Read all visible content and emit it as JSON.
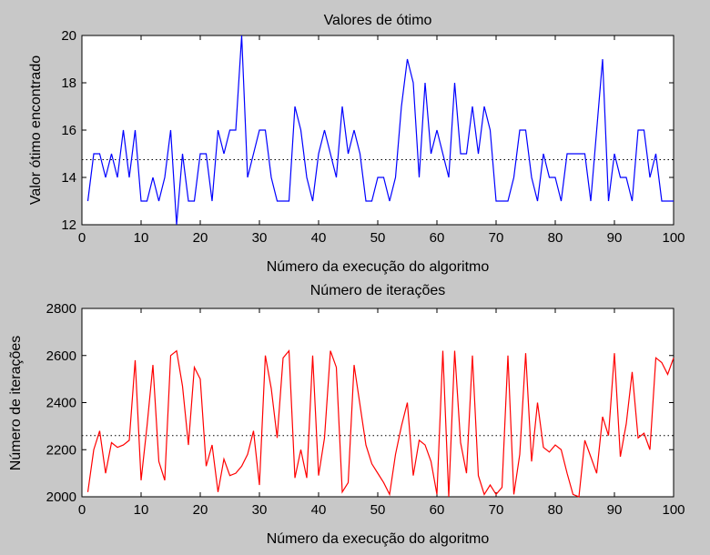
{
  "chart_data": [
    {
      "type": "line",
      "title": "Valores de ótimo",
      "xlabel": "Número da execução do algoritmo",
      "ylabel": "Valor ótimo encontrado",
      "xlim": [
        0,
        100
      ],
      "ylim": [
        12,
        20
      ],
      "xticks": [
        0,
        10,
        20,
        30,
        40,
        50,
        60,
        70,
        80,
        90,
        100
      ],
      "yticks": [
        12,
        14,
        16,
        18,
        20
      ],
      "grid": false,
      "line_color": "#0000ff",
      "mean_line": 14.75,
      "mean_line_color": "#000000",
      "series": [
        {
          "x": [
            1,
            2,
            3,
            4,
            5,
            6,
            7,
            8,
            9,
            10,
            11,
            12,
            13,
            14,
            15,
            16,
            17,
            18,
            19,
            20,
            21,
            22,
            23,
            24,
            25,
            26,
            27,
            28,
            29,
            30,
            31,
            32,
            33,
            34,
            35,
            36,
            37,
            38,
            39,
            40,
            41,
            42,
            43,
            44,
            45,
            46,
            47,
            48,
            49,
            50,
            51,
            52,
            53,
            54,
            55,
            56,
            57,
            58,
            59,
            60,
            61,
            62,
            63,
            64,
            65,
            66,
            67,
            68,
            69,
            70,
            71,
            72,
            73,
            74,
            75,
            76,
            77,
            78,
            79,
            80,
            81,
            82,
            83,
            84,
            85,
            86,
            87,
            88,
            89,
            90,
            91,
            92,
            93,
            94,
            95,
            96,
            97,
            98,
            99,
            100
          ],
          "y": [
            13,
            15,
            15,
            14,
            15,
            14,
            16,
            14,
            16,
            13,
            13,
            14,
            13,
            14,
            16,
            12,
            15,
            13,
            13,
            15,
            15,
            13,
            16,
            15,
            16,
            16,
            20,
            14,
            15,
            16,
            16,
            14,
            13,
            13,
            13,
            17,
            16,
            14,
            13,
            15,
            16,
            15,
            14,
            17,
            15,
            16,
            15,
            13,
            13,
            14,
            14,
            13,
            14,
            17,
            19,
            18,
            14,
            18,
            15,
            16,
            15,
            14,
            18,
            15,
            15,
            17,
            15,
            17,
            16,
            13,
            13,
            13,
            14,
            16,
            16,
            14,
            13,
            15,
            14,
            14,
            13,
            15,
            15,
            15,
            15,
            13,
            16,
            19,
            13,
            15,
            14,
            14,
            13,
            16,
            16,
            14,
            15,
            13,
            13,
            13
          ]
        }
      ]
    },
    {
      "type": "line",
      "title": "Número de iterações",
      "xlabel": "Número da execução do algoritmo",
      "ylabel": "Número de iterações",
      "xlim": [
        0,
        100
      ],
      "ylim": [
        2000,
        2800
      ],
      "xticks": [
        0,
        10,
        20,
        30,
        40,
        50,
        60,
        70,
        80,
        90,
        100
      ],
      "yticks": [
        2000,
        2200,
        2400,
        2600,
        2800
      ],
      "grid": false,
      "line_color": "#ff0000",
      "mean_line": 2260,
      "mean_line_color": "#000000",
      "series": [
        {
          "x": [
            1,
            2,
            3,
            4,
            5,
            6,
            7,
            8,
            9,
            10,
            11,
            12,
            13,
            14,
            15,
            16,
            17,
            18,
            19,
            20,
            21,
            22,
            23,
            24,
            25,
            26,
            27,
            28,
            29,
            30,
            31,
            32,
            33,
            34,
            35,
            36,
            37,
            38,
            39,
            40,
            41,
            42,
            43,
            44,
            45,
            46,
            47,
            48,
            49,
            50,
            51,
            52,
            53,
            54,
            55,
            56,
            57,
            58,
            59,
            60,
            61,
            62,
            63,
            64,
            65,
            66,
            67,
            68,
            69,
            70,
            71,
            72,
            73,
            74,
            75,
            76,
            77,
            78,
            79,
            80,
            81,
            82,
            83,
            84,
            85,
            86,
            87,
            88,
            89,
            90,
            91,
            92,
            93,
            94,
            95,
            96,
            97,
            98,
            99,
            100
          ],
          "y": [
            2020,
            2200,
            2280,
            2100,
            2230,
            2210,
            2220,
            2240,
            2580,
            2070,
            2300,
            2560,
            2150,
            2070,
            2600,
            2620,
            2470,
            2220,
            2550,
            2500,
            2130,
            2220,
            2020,
            2160,
            2090,
            2100,
            2130,
            2180,
            2280,
            2050,
            2600,
            2460,
            2250,
            2590,
            2620,
            2080,
            2200,
            2080,
            2600,
            2090,
            2250,
            2620,
            2550,
            2020,
            2060,
            2560,
            2390,
            2220,
            2140,
            2100,
            2060,
            2010,
            2180,
            2300,
            2400,
            2090,
            2240,
            2220,
            2150,
            2010,
            2620,
            2000,
            2620,
            2230,
            2100,
            2600,
            2090,
            2010,
            2050,
            2010,
            2040,
            2600,
            2010,
            2180,
            2610,
            2150,
            2400,
            2210,
            2190,
            2220,
            2200,
            2100,
            2010,
            2000,
            2240,
            2170,
            2100,
            2340,
            2260,
            2610,
            2170,
            2310,
            2530,
            2250,
            2270,
            2200,
            2590,
            2570,
            2520,
            2590
          ]
        }
      ]
    }
  ]
}
